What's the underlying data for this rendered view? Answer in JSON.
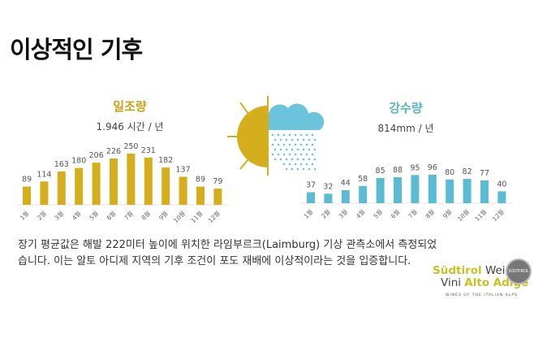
{
  "title": "이상적인 기후",
  "colors": {
    "sun": "#d4ae1c",
    "rain": "#5bbbd3"
  },
  "icons": [
    "sun-icon",
    "rain-cloud-icon"
  ],
  "chart_data": [
    {
      "type": "bar",
      "title": "일조량",
      "subtitle": "1.946 시간 / 년",
      "categories": [
        "1월",
        "2월",
        "3월",
        "4월",
        "5월",
        "6월",
        "7월",
        "8월",
        "9월",
        "10월",
        "11월",
        "12월"
      ],
      "values": [
        89,
        114,
        163,
        180,
        206,
        226,
        250,
        231,
        182,
        137,
        89,
        79
      ],
      "color": "#d4ae1c"
    },
    {
      "type": "bar",
      "title": "강수량",
      "subtitle": "814mm / 년",
      "categories": [
        "1월",
        "2월",
        "3월",
        "4월",
        "5월",
        "6월",
        "7월",
        "8월",
        "9월",
        "10월",
        "11월",
        "12월"
      ],
      "values": [
        37,
        32,
        44,
        58,
        85,
        88,
        95,
        96,
        80,
        82,
        77,
        40
      ],
      "color": "#5bbbd3"
    }
  ],
  "description": "장기 평균값은 해발 222미터 높이에 위치한 라임부르크(Laimburg) 기상 관측소에서 측정되었습니다. 이는 알토 아디제 지역의 기후 조건이 포도 재배에 이상적이라는 것을 입증합니다.",
  "logo": {
    "line1a": "Südtirol",
    "line1b": "Wein",
    "line2a": "Vini",
    "line2b": "Alto Adige",
    "tagline": "WINES OF THE ITALIAN ALPS",
    "badge": "SÜDTIROL"
  }
}
